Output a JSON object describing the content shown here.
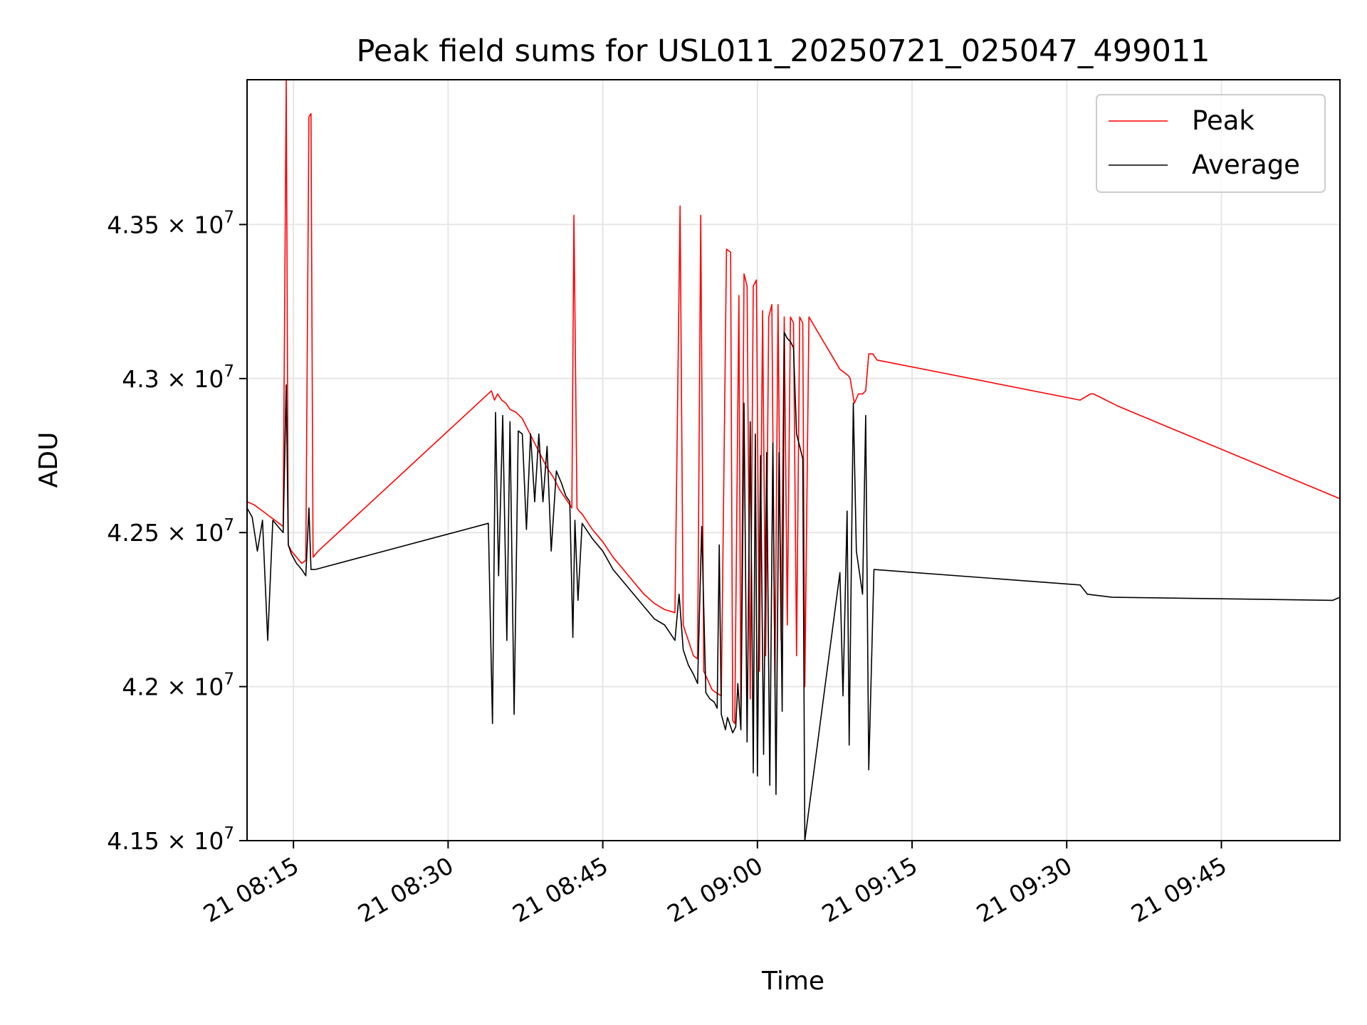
{
  "chart_data": {
    "type": "line",
    "title": "Peak field sums for USL011_20250721_025047_499011",
    "xlabel": "Time",
    "ylabel": "ADU",
    "x_unit": "minutes after 21 08:00",
    "xlim": [
      10.5,
      116.5
    ],
    "ylim": [
      41500000,
      43970000
    ],
    "grid": true,
    "legend_position": "top-right",
    "x_ticks": [
      {
        "value": 15,
        "label": "21 08:15"
      },
      {
        "value": 30,
        "label": "21 08:30"
      },
      {
        "value": 45,
        "label": "21 08:45"
      },
      {
        "value": 60,
        "label": "21 09:00"
      },
      {
        "value": 75,
        "label": "21 09:15"
      },
      {
        "value": 90,
        "label": "21 09:30"
      },
      {
        "value": 105,
        "label": "21 09:45"
      }
    ],
    "y_ticks": [
      {
        "value": 41500000,
        "mantissa": "4.15"
      },
      {
        "value": 42000000,
        "mantissa": "4.2"
      },
      {
        "value": 42500000,
        "mantissa": "4.25"
      },
      {
        "value": 43000000,
        "mantissa": "4.3"
      },
      {
        "value": 43500000,
        "mantissa": "4.35"
      }
    ],
    "y_tick_multiplier": "× 10",
    "y_tick_exponent": "7",
    "series": [
      {
        "name": "Peak",
        "color": "#ff0000",
        "x": [
          10.5,
          11.2,
          12.0,
          12.8,
          13.6,
          14.0,
          14.3,
          14.5,
          14.8,
          15.3,
          15.8,
          16.2,
          16.5,
          16.7,
          16.9,
          17.4,
          34.2,
          34.5,
          34.8,
          35.2,
          35.6,
          36.0,
          36.6,
          37.2,
          37.8,
          38.4,
          39.0,
          39.6,
          40.2,
          40.8,
          41.4,
          42.0,
          42.2,
          42.5,
          42.7,
          43.0,
          44.0,
          45.0,
          46.0,
          47.0,
          48.0,
          49.0,
          50.0,
          51.0,
          52.0,
          52.5,
          52.8,
          53.0,
          53.3,
          53.8,
          54.2,
          54.5,
          54.8,
          55.2,
          55.6,
          56.0,
          56.5,
          57.0,
          57.4,
          57.6,
          57.8,
          58.2,
          58.4,
          58.7,
          59.0,
          59.3,
          59.6,
          59.9,
          60.2,
          60.5,
          60.8,
          61.1,
          61.4,
          61.7,
          62.0,
          62.3,
          62.6,
          62.9,
          63.2,
          63.5,
          63.8,
          64.1,
          64.4,
          64.6,
          65.0,
          68.0,
          68.8,
          69.0,
          69.4,
          69.8,
          70.2,
          70.5,
          70.8,
          71.2,
          71.6,
          91.3,
          92.3,
          92.6,
          95.0,
          116.5
        ],
        "y": [
          42600000,
          42590000,
          42570000,
          42550000,
          42530000,
          42520000,
          43970000,
          42460000,
          42440000,
          42420000,
          42400000,
          42410000,
          43850000,
          43860000,
          42420000,
          42440000,
          42960000,
          42930000,
          42950000,
          42930000,
          42920000,
          42900000,
          42890000,
          42870000,
          42830000,
          42790000,
          42750000,
          42710000,
          42680000,
          42640000,
          42610000,
          42580000,
          43530000,
          42580000,
          42570000,
          42560000,
          42510000,
          42470000,
          42420000,
          42380000,
          42340000,
          42300000,
          42270000,
          42250000,
          42240000,
          43560000,
          42200000,
          42180000,
          42150000,
          42100000,
          42090000,
          43530000,
          42050000,
          42020000,
          41990000,
          41980000,
          41970000,
          43420000,
          43410000,
          41890000,
          41880000,
          43270000,
          41880000,
          43340000,
          43300000,
          41960000,
          43300000,
          43320000,
          42050000,
          43220000,
          42100000,
          43200000,
          43240000,
          42000000,
          43240000,
          42150000,
          43200000,
          42200000,
          43200000,
          43180000,
          42100000,
          43200000,
          43180000,
          42000000,
          43200000,
          43030000,
          43010000,
          43000000,
          42920000,
          42950000,
          42950000,
          42960000,
          43080000,
          43080000,
          43060000,
          42930000,
          42950000,
          42950000,
          42910000,
          42610000
        ]
      },
      {
        "name": "Average",
        "color": "#000000",
        "x": [
          10.5,
          11.0,
          11.5,
          12.0,
          12.5,
          13.0,
          13.5,
          14.0,
          14.3,
          14.5,
          14.8,
          15.3,
          15.8,
          16.2,
          16.5,
          16.7,
          17.1,
          33.9,
          34.3,
          34.6,
          34.9,
          35.3,
          35.7,
          36.0,
          36.4,
          36.8,
          37.2,
          37.6,
          38.0,
          38.4,
          38.8,
          39.2,
          39.6,
          40.0,
          40.5,
          41.0,
          41.4,
          41.8,
          42.1,
          42.3,
          42.6,
          43.0,
          44.0,
          45.0,
          46.0,
          47.0,
          48.0,
          49.0,
          50.0,
          51.0,
          52.0,
          52.4,
          52.8,
          53.0,
          53.3,
          53.8,
          54.2,
          54.6,
          55.0,
          55.4,
          55.8,
          56.1,
          56.3,
          56.5,
          56.9,
          57.1,
          57.6,
          57.9,
          58.1,
          58.4,
          58.7,
          59.0,
          59.3,
          59.6,
          59.8,
          60.0,
          60.3,
          60.6,
          60.9,
          61.2,
          61.5,
          61.8,
          62.1,
          62.4,
          62.6,
          62.9,
          63.2,
          63.5,
          63.8,
          64.1,
          64.4,
          64.6,
          68.0,
          68.3,
          68.7,
          68.9,
          69.3,
          69.6,
          70.2,
          70.5,
          70.8,
          71.3,
          91.3,
          92.0,
          94.4,
          115.8,
          116.5
        ],
        "y": [
          42580000,
          42550000,
          42440000,
          42540000,
          42150000,
          42540000,
          42520000,
          42500000,
          42980000,
          42460000,
          42430000,
          42400000,
          42380000,
          42360000,
          42580000,
          42380000,
          42380000,
          42530000,
          41880000,
          42890000,
          42360000,
          42880000,
          42150000,
          42860000,
          41910000,
          42830000,
          42820000,
          42510000,
          42820000,
          42600000,
          42820000,
          42600000,
          42780000,
          42440000,
          42700000,
          42660000,
          42620000,
          42600000,
          42160000,
          42540000,
          42280000,
          42530000,
          42480000,
          42440000,
          42380000,
          42340000,
          42300000,
          42260000,
          42220000,
          42200000,
          42150000,
          42300000,
          42120000,
          42100000,
          42070000,
          42040000,
          42010000,
          42520000,
          41980000,
          41960000,
          41950000,
          41930000,
          42460000,
          41910000,
          41860000,
          41900000,
          41850000,
          41870000,
          42010000,
          41860000,
          42920000,
          41820000,
          42860000,
          41720000,
          42820000,
          41710000,
          42750000,
          41780000,
          42760000,
          41680000,
          42790000,
          41650000,
          42760000,
          41920000,
          43150000,
          43130000,
          43120000,
          43100000,
          42820000,
          42780000,
          42740000,
          41500000,
          42370000,
          41970000,
          42570000,
          41810000,
          42920000,
          42440000,
          42300000,
          42880000,
          41730000,
          42380000,
          42330000,
          42300000,
          42290000,
          42280000,
          42290000
        ]
      }
    ]
  }
}
